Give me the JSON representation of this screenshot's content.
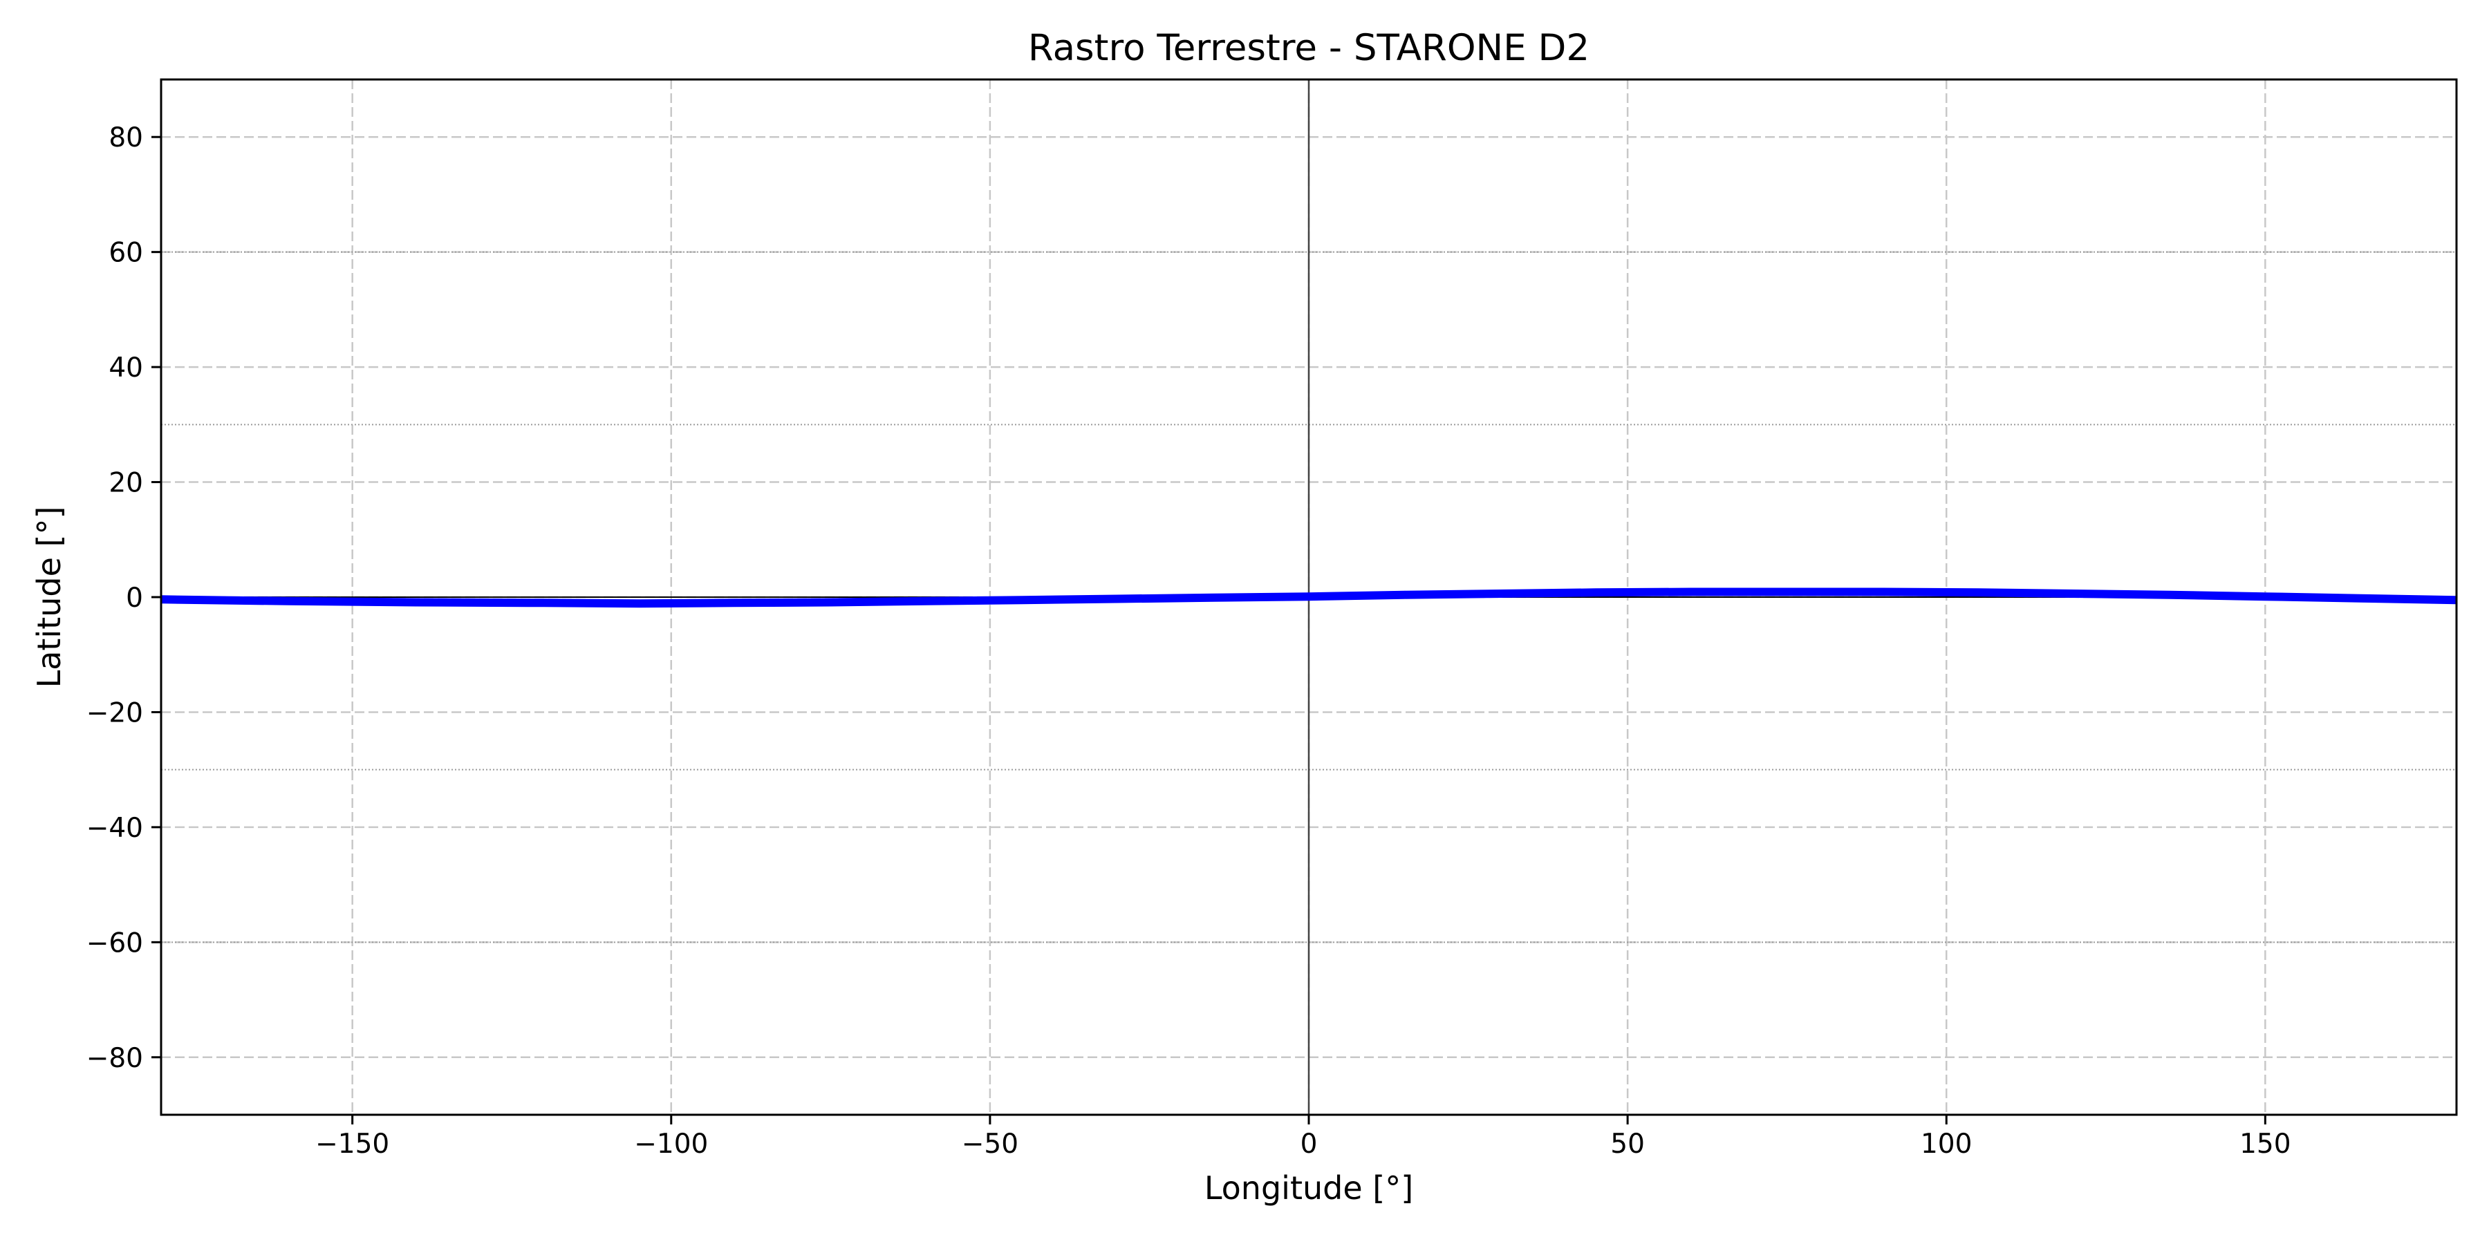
{
  "chart_data": {
    "type": "line",
    "title": "Rastro Terrestre - STARONE D2",
    "xlabel": "Longitude [°]",
    "ylabel": "Latitude [°]",
    "xlim": [
      -180,
      180
    ],
    "ylim": [
      -90,
      90
    ],
    "xticks": [
      -150,
      -100,
      -50,
      0,
      50,
      100,
      150
    ],
    "xtick_labels": [
      "−150",
      "−100",
      "−50",
      "0",
      "50",
      "100",
      "150"
    ],
    "yticks": [
      -80,
      -60,
      -40,
      -20,
      0,
      20,
      40,
      60,
      80
    ],
    "ytick_labels": [
      "−80",
      "−60",
      "−40",
      "−20",
      "0",
      "20",
      "40",
      "60",
      "80"
    ],
    "grid": true,
    "reference_lines": {
      "horizontal": [
        0,
        30,
        -30,
        60,
        -60
      ],
      "vertical": [
        0
      ]
    },
    "series": [
      {
        "color": "#0000ff",
        "x": [
          -180,
          -160,
          -140,
          -120,
          -105,
          -90,
          -75,
          -60,
          -45,
          -30,
          -15,
          0,
          15,
          30,
          45,
          60,
          75,
          90,
          105,
          120,
          135,
          150,
          165,
          180
        ],
        "y": [
          -0.4,
          -0.7,
          -0.9,
          -1.0,
          -1.1,
          -1.0,
          -0.9,
          -0.7,
          -0.5,
          -0.3,
          -0.1,
          0.1,
          0.4,
          0.6,
          0.8,
          0.9,
          0.9,
          0.9,
          0.8,
          0.6,
          0.4,
          0.1,
          -0.2,
          -0.5
        ]
      }
    ]
  }
}
